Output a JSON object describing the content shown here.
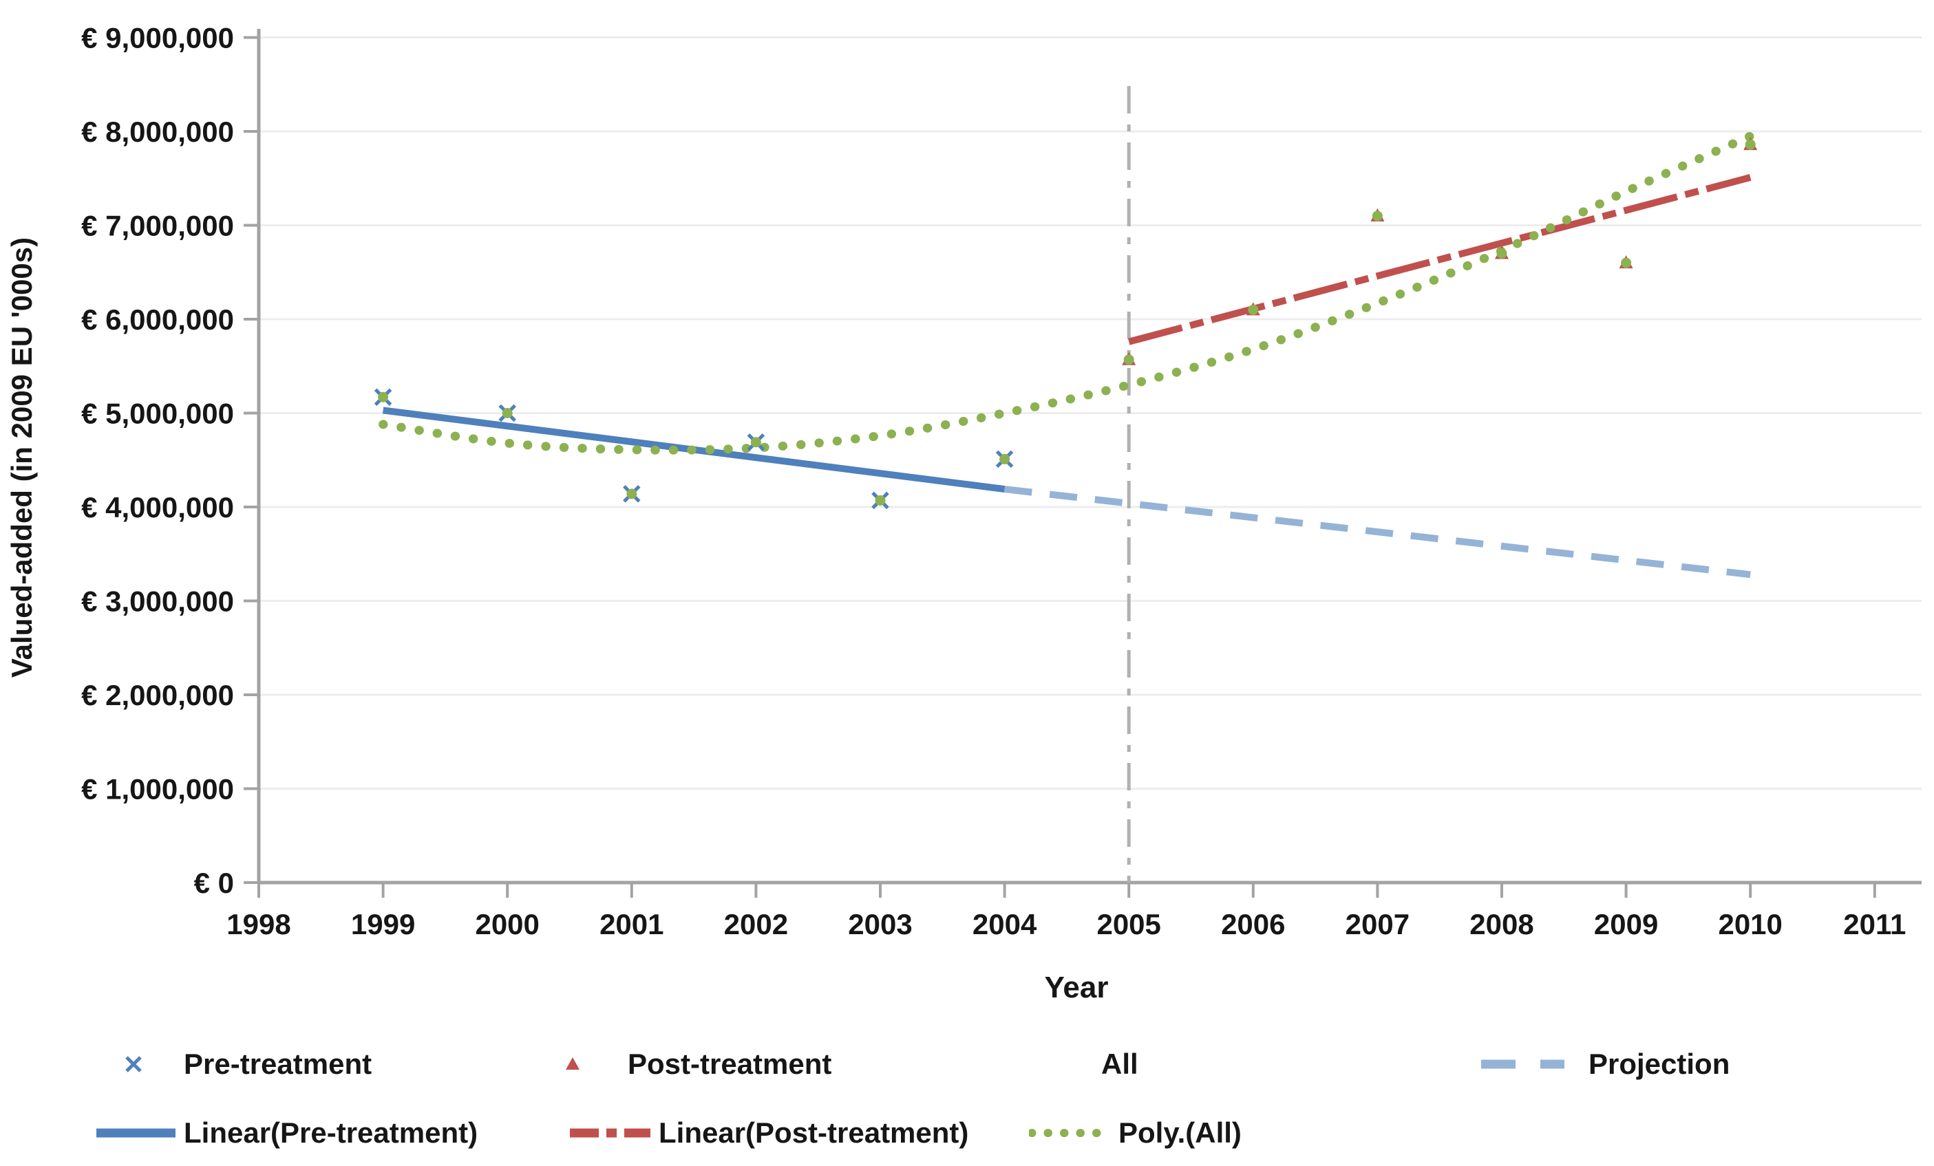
{
  "chart_data": {
    "type": "line",
    "title": "",
    "xlabel": "Year",
    "ylabel": "Valued-added (in 2009 EU '000s)",
    "xlim": [
      1998,
      2011
    ],
    "ylim": [
      0,
      9000000
    ],
    "x_ticks": [
      1998,
      1999,
      2000,
      2001,
      2002,
      2003,
      2004,
      2005,
      2006,
      2007,
      2008,
      2009,
      2010,
      2011
    ],
    "y_tick_step": 1000000,
    "y_tick_labels": [
      "€ 0",
      "€ 1,000,000",
      "€ 2,000,000",
      "€ 3,000,000",
      "€ 4,000,000",
      "€ 5,000,000",
      "€ 6,000,000",
      "€ 7,000,000",
      "€ 8,000,000",
      "€ 9,000,000"
    ],
    "grid": "horizontal",
    "legend_position": "bottom",
    "treatment_divider_year": 2005,
    "series": [
      {
        "name": "Pre-treatment",
        "type": "scatter",
        "marker": "x",
        "color": "#4E80BC",
        "x": [
          1999,
          2000,
          2001,
          2002,
          2003,
          2004
        ],
        "y": [
          5170000,
          5000000,
          4140000,
          4690000,
          4070000,
          4510000
        ]
      },
      {
        "name": "Post-treatment",
        "type": "scatter",
        "marker": "triangle",
        "color": "#C0504D",
        "x": [
          2005,
          2006,
          2007,
          2008,
          2009,
          2010
        ],
        "y": [
          5570000,
          6100000,
          7100000,
          6700000,
          6600000,
          7860000
        ]
      },
      {
        "name": "All",
        "type": "scatter",
        "marker": "dot",
        "color": "#8CB150",
        "x": [
          1999,
          2000,
          2001,
          2002,
          2003,
          2004,
          2005,
          2006,
          2007,
          2008,
          2009,
          2010
        ],
        "y": [
          5170000,
          5000000,
          4140000,
          4690000,
          4070000,
          4510000,
          5570000,
          6100000,
          7100000,
          6700000,
          6600000,
          7860000
        ]
      },
      {
        "name": "Linear(Pre-treatment)",
        "type": "line",
        "style": "solid",
        "color": "#4E80BC",
        "x": [
          1999,
          2004
        ],
        "y": [
          5030000,
          4190000
        ]
      },
      {
        "name": "Projection",
        "type": "line",
        "style": "dashed",
        "color": "#95B3D7",
        "x": [
          2004,
          2010
        ],
        "y": [
          4190000,
          3280000
        ]
      },
      {
        "name": "Linear(Post-treatment)",
        "type": "line",
        "style": "dashdot",
        "color": "#C0504D",
        "x": [
          2005,
          2010
        ],
        "y": [
          5760000,
          7510000
        ]
      },
      {
        "name": "Poly.(All)",
        "type": "line",
        "style": "dotted-curve",
        "color": "#8CB150",
        "x": [
          1999,
          2000,
          2001,
          2002,
          2003,
          2004,
          2005,
          2006,
          2007,
          2008,
          2009,
          2010
        ],
        "y": [
          4880000,
          4680000,
          4610000,
          4630000,
          4760000,
          5000000,
          5300000,
          5680000,
          6170000,
          6730000,
          7360000,
          7950000
        ]
      }
    ],
    "reference_line": {
      "x": 2005,
      "style": "dashdot",
      "color": "#B0B0B0"
    },
    "legend": {
      "rows": [
        [
          {
            "id": "pre",
            "label": "Pre-treatment",
            "swatch": "x-marker",
            "color": "#4E80BC"
          },
          {
            "id": "post",
            "label": "Post-treatment",
            "swatch": "triangle-marker",
            "color": "#C0504D"
          },
          {
            "id": "all",
            "label": "All",
            "swatch": "none",
            "color": "#8CB150"
          },
          {
            "id": "projection",
            "label": "Projection",
            "swatch": "dash-pair",
            "color": "#95B3D7"
          }
        ],
        [
          {
            "id": "linear-pre",
            "label": "Linear(Pre-treatment)",
            "swatch": "solid-line",
            "color": "#4E80BC"
          },
          {
            "id": "linear-post",
            "label": "Linear(Post-treatment)",
            "swatch": "dashdot-line",
            "color": "#C0504D"
          },
          {
            "id": "poly",
            "label": "Poly.(All)",
            "swatch": "dotted-line",
            "color": "#8CB150"
          }
        ]
      ]
    },
    "colors": {
      "axis": "#A3A3A3",
      "grid": "#EDEDED",
      "text": "#161616"
    }
  }
}
